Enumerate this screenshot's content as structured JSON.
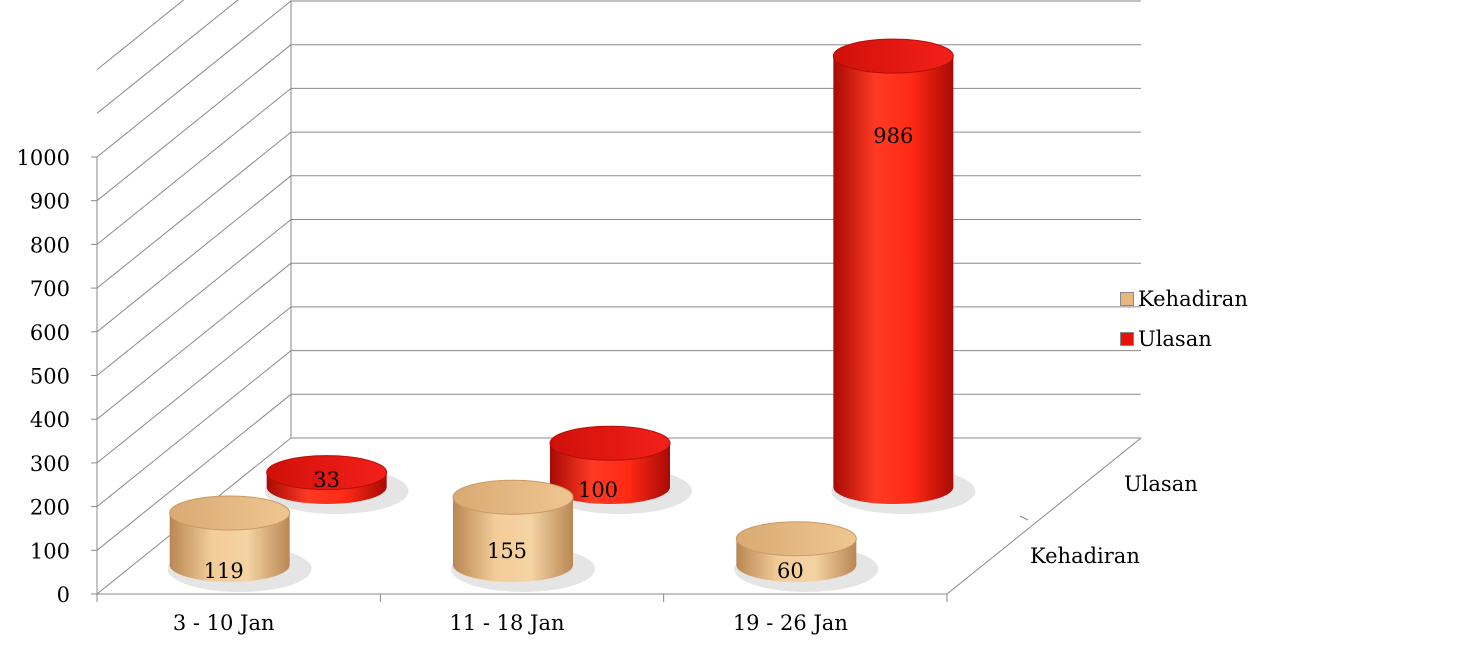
{
  "chart_data": {
    "type": "bar",
    "title": "",
    "xlabel": "",
    "ylabel": "",
    "categories": [
      "3 - 10 Jan",
      "11 - 18 Jan",
      "19 - 26 Jan"
    ],
    "depth_categories": [
      "Kehadiran",
      "Ulasan"
    ],
    "series": [
      {
        "name": "Kehadiran",
        "values": [
          119,
          155,
          60
        ],
        "color": "#E9B77E"
      },
      {
        "name": "Ulasan",
        "values": [
          33,
          100,
          986
        ],
        "color": "#E8120C"
      }
    ],
    "ylim": [
      0,
      1000
    ],
    "yticks": [
      "0",
      "100",
      "200",
      "300",
      "400",
      "500",
      "600",
      "700",
      "800",
      "900",
      "1000"
    ],
    "grid": true,
    "legend_position": "right",
    "bar_shape": "cylinder"
  }
}
